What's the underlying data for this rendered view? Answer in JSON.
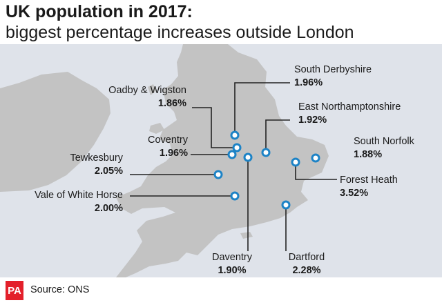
{
  "title": "UK population in 2017:",
  "subtitle": "biggest percentage increases outside London",
  "places": [
    {
      "name": "South Derbyshire",
      "value": "1.96%"
    },
    {
      "name": "Oadby & Wigston",
      "value": "1.86%"
    },
    {
      "name": "East Northamptonshire",
      "value": "1.92%"
    },
    {
      "name": "Coventry",
      "value": "1.96%"
    },
    {
      "name": "South Norfolk",
      "value": "1.88%"
    },
    {
      "name": "Tewkesbury",
      "value": "2.05%"
    },
    {
      "name": "Forest Heath",
      "value": "3.52%"
    },
    {
      "name": "Vale of White Horse",
      "value": "2.00%"
    },
    {
      "name": "Daventry",
      "value": "1.90%"
    },
    {
      "name": "Dartford",
      "value": "2.28%"
    }
  ],
  "source": "Source: ONS",
  "logo_text": "PA",
  "colors": {
    "sea": "#dfe3ea",
    "land": "#c3c3c3",
    "marker": "#1d83c6",
    "leader": "#222222",
    "logo": "#e3202b"
  }
}
